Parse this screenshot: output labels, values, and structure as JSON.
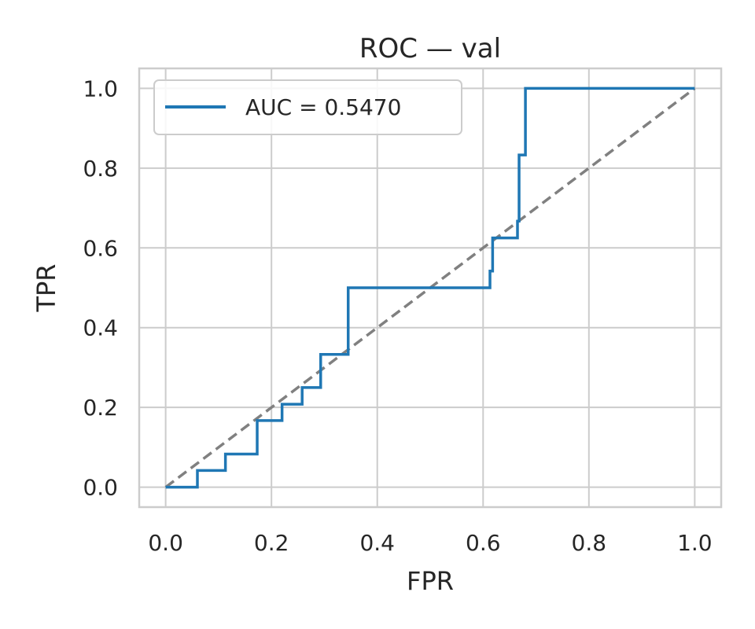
{
  "chart_data": {
    "type": "line",
    "title": "ROC — val",
    "xlabel": "FPR",
    "ylabel": "TPR",
    "xlim": [
      -0.05,
      1.05
    ],
    "ylim": [
      -0.05,
      1.05
    ],
    "x_ticks": [
      0.0,
      0.2,
      0.4,
      0.6,
      0.8,
      1.0
    ],
    "y_ticks": [
      0.0,
      0.2,
      0.4,
      0.6,
      0.8,
      1.0
    ],
    "x_tick_labels": [
      "0.0",
      "0.2",
      "0.4",
      "0.6",
      "0.8",
      "1.0"
    ],
    "y_tick_labels": [
      "0.0",
      "0.2",
      "0.4",
      "0.6",
      "0.8",
      "1.0"
    ],
    "grid": true,
    "legend_position": "top-left",
    "series": [
      {
        "name": "AUC = 0.5470",
        "color": "#1f77b4",
        "style": "solid",
        "x": [
          0.0,
          0.06,
          0.06,
          0.113,
          0.113,
          0.173,
          0.173,
          0.22,
          0.22,
          0.258,
          0.258,
          0.293,
          0.293,
          0.345,
          0.345,
          0.613,
          0.613,
          0.618,
          0.618,
          0.665,
          0.665,
          0.668,
          0.668,
          0.68,
          0.68,
          1.0
        ],
        "y": [
          0.0,
          0.0,
          0.042,
          0.042,
          0.083,
          0.083,
          0.167,
          0.167,
          0.208,
          0.208,
          0.25,
          0.25,
          0.333,
          0.333,
          0.5,
          0.5,
          0.542,
          0.542,
          0.625,
          0.625,
          0.667,
          0.667,
          0.833,
          0.833,
          1.0,
          1.0
        ]
      },
      {
        "name": "",
        "color": "#808080",
        "style": "dashed",
        "x": [
          0.0,
          1.0
        ],
        "y": [
          0.0,
          1.0
        ]
      }
    ]
  }
}
